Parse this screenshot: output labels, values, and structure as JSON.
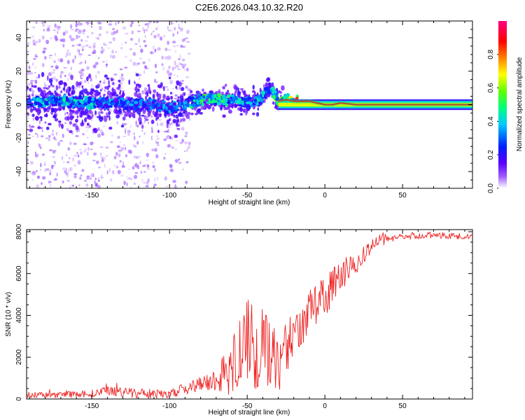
{
  "chart_data": [
    {
      "type": "heatmap",
      "title": "C2E6.2026.043.10.32.R20",
      "xlabel": "Height of straight line (km)",
      "ylabel": "Frequency (Hz)",
      "xlim": [
        -192,
        95
      ],
      "ylim": [
        -50,
        50
      ],
      "xticks": [
        -150,
        -100,
        -50,
        0,
        50
      ],
      "yticks": [
        -40,
        -20,
        0,
        20,
        40
      ],
      "colorbar": {
        "label": "Normalized spectral amplitude",
        "range": [
          0,
          1
        ],
        "ticks": [
          "0.0",
          "0.2",
          "0.4",
          "0.6",
          "0.8"
        ],
        "tick_values": [
          0.0,
          0.2,
          0.4,
          0.6,
          0.8
        ],
        "colors": [
          "#ffffff",
          "#a05cff",
          "#5a00ff",
          "#0020ff",
          "#00c8ff",
          "#00ff80",
          "#60ff00",
          "#ffff00",
          "#ff8000",
          "#ff0000",
          "#ff0080"
        ]
      },
      "ridge": {
        "x": [
          -190,
          -170,
          -150,
          -130,
          -110,
          -100,
          -90,
          -80,
          -70,
          -60,
          -50,
          -45,
          -40,
          -35,
          -32,
          -30,
          -25,
          -20,
          -15,
          -10,
          -5,
          0,
          5,
          10,
          20,
          50,
          95
        ],
        "freq": [
          1,
          2,
          1,
          1,
          0,
          -2,
          0,
          3,
          3,
          3,
          1,
          2,
          4,
          10,
          6,
          2,
          3,
          2,
          2,
          2,
          1,
          0,
          0,
          1,
          0,
          0,
          0
        ],
        "amplitude": [
          0.3,
          0.4,
          0.35,
          0.3,
          0.3,
          0.3,
          0.35,
          0.45,
          0.45,
          0.4,
          0.35,
          0.35,
          0.4,
          0.4,
          0.45,
          0.5,
          0.6,
          0.7,
          0.65,
          0.7,
          0.75,
          0.8,
          0.8,
          0.85,
          0.9,
          0.9,
          0.9
        ]
      }
    },
    {
      "type": "line",
      "xlabel": "Height of straight line (km)",
      "ylabel": "SNR (10 * v/v)",
      "xlim": [
        -192,
        95
      ],
      "ylim": [
        0,
        8100
      ],
      "xticks": [
        -150,
        -100,
        -50,
        0,
        50
      ],
      "yticks": [
        0,
        2000,
        4000,
        6000,
        8000
      ],
      "series": [
        {
          "name": "SNR",
          "color": "#ee2222",
          "x": [
            -192,
            -170,
            -150,
            -135,
            -120,
            -100,
            -90,
            -80,
            -70,
            -65,
            -60,
            -55,
            -50,
            -46,
            -42,
            -38,
            -35,
            -30,
            -27,
            -25,
            -20,
            -15,
            -10,
            -5,
            0,
            5,
            10,
            15,
            20,
            25,
            30,
            35,
            40,
            50,
            60,
            70,
            80,
            95
          ],
          "y": [
            200,
            200,
            250,
            400,
            250,
            250,
            500,
            700,
            900,
            1300,
            1500,
            2000,
            2600,
            2900,
            2800,
            2500,
            2000,
            1500,
            1600,
            2500,
            3000,
            3500,
            4200,
            4800,
            5000,
            5400,
            5800,
            6100,
            6400,
            6900,
            7300,
            7600,
            7700,
            7750,
            7800,
            7850,
            7800,
            7750
          ],
          "spread": [
            150,
            150,
            200,
            300,
            250,
            200,
            300,
            400,
            600,
            900,
            1400,
            1800,
            2200,
            2400,
            2600,
            2400,
            2000,
            1400,
            1200,
            1300,
            1200,
            1100,
            1000,
            1000,
            1000,
            950,
            900,
            700,
            500,
            400,
            300,
            250,
            200,
            150,
            150,
            150,
            150,
            150
          ]
        }
      ]
    }
  ]
}
